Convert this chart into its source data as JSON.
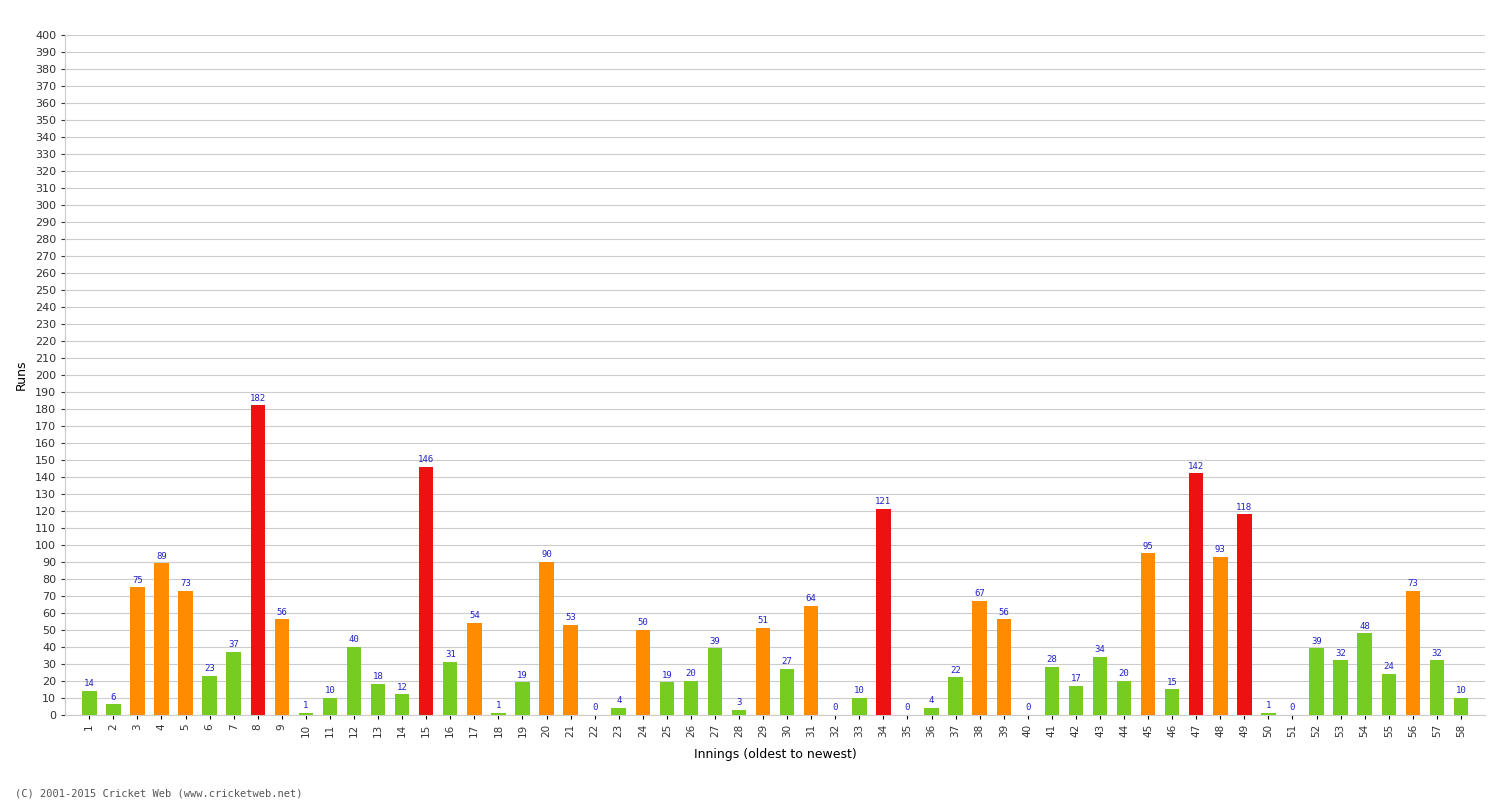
{
  "ylabel": "Runs",
  "xlabel": "Innings (oldest to newest)",
  "ylim": [
    0,
    400
  ],
  "yticks": [
    0,
    10,
    20,
    30,
    40,
    50,
    60,
    70,
    80,
    90,
    100,
    110,
    120,
    130,
    140,
    150,
    160,
    170,
    180,
    190,
    200,
    210,
    220,
    230,
    240,
    250,
    260,
    270,
    280,
    290,
    300,
    310,
    320,
    330,
    340,
    350,
    360,
    370,
    380,
    390,
    400
  ],
  "background_color": "#ffffff",
  "plot_bg_color": "#ffffff",
  "innings": [
    1,
    2,
    3,
    4,
    5,
    6,
    7,
    8,
    9,
    10,
    11,
    12,
    13,
    14,
    15,
    16,
    17,
    18,
    19,
    20,
    21,
    22,
    23,
    24,
    25,
    26,
    27,
    28,
    29,
    30,
    31,
    32,
    33,
    34,
    35,
    36,
    37,
    38,
    39,
    40,
    41,
    42,
    43,
    44,
    45,
    46,
    47,
    48,
    49,
    50,
    51,
    52,
    53,
    54,
    55,
    56,
    57,
    58
  ],
  "scores": [
    14,
    6,
    75,
    89,
    73,
    23,
    37,
    182,
    56,
    1,
    10,
    40,
    18,
    12,
    146,
    31,
    54,
    1,
    19,
    90,
    53,
    0,
    4,
    50,
    19,
    20,
    39,
    3,
    51,
    27,
    64,
    0,
    10,
    121,
    0,
    4,
    22,
    67,
    56,
    0,
    28,
    17,
    34,
    20,
    95,
    15,
    142,
    93,
    118,
    1,
    0,
    39,
    32,
    48,
    24,
    73,
    32,
    10
  ],
  "century_color": "#ee1111",
  "fifty_color": "#ff8c00",
  "sub_fifty_color": "#77cc22",
  "grid_color": "#cccccc",
  "label_color": "#2222cc",
  "tick_color": "#333333",
  "footer": "(C) 2001-2015 Cricket Web (www.cricketweb.net)",
  "bar_width": 0.6
}
